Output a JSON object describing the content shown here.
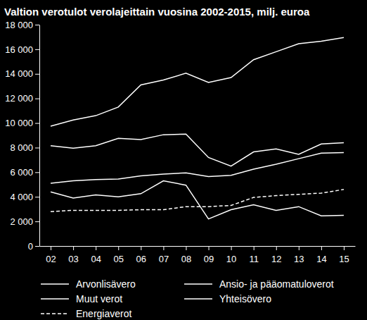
{
  "chart_data": {
    "type": "line",
    "title": "Valtion verotulot verolajeittain vuosina 2002-2015, milj. euroa",
    "categories": [
      "02",
      "03",
      "04",
      "05",
      "06",
      "07",
      "08",
      "09",
      "10",
      "11",
      "12",
      "13",
      "14",
      "15"
    ],
    "series": [
      {
        "name": "Arvonlisävero",
        "color": "#ffffff",
        "line_style": "solid",
        "values": [
          9750,
          10250,
          10600,
          11300,
          13100,
          13500,
          14050,
          13300,
          13700,
          15150,
          15800,
          16450,
          16650,
          16950
        ]
      },
      {
        "name": "Ansio- ja pääomatuloverot",
        "color": "#ffffff",
        "line_style": "solid",
        "values": [
          8150,
          7950,
          8150,
          8750,
          8650,
          9050,
          9100,
          7200,
          6500,
          7650,
          7900,
          7450,
          8300,
          8400
        ]
      },
      {
        "name": "Muut verot",
        "color": "#ffffff",
        "line_style": "solid",
        "values": [
          5100,
          5300,
          5400,
          5450,
          5700,
          5850,
          5950,
          5650,
          5750,
          6250,
          6650,
          7100,
          7550,
          7600
        ]
      },
      {
        "name": "Yhteisövero",
        "color": "#ffffff",
        "line_style": "solid",
        "values": [
          4400,
          3900,
          4150,
          4000,
          4250,
          5300,
          4950,
          2200,
          2950,
          3350,
          2900,
          3200,
          2450,
          2500
        ]
      },
      {
        "name": "Energiaverot",
        "color": "#ffffff",
        "line_style": "dashed",
        "values": [
          2800,
          2900,
          2900,
          2900,
          2950,
          2950,
          3200,
          3200,
          3300,
          3950,
          4100,
          4200,
          4300,
          4600
        ]
      }
    ],
    "ylim": [
      0,
      18000
    ],
    "yticks": [
      0,
      {
        "value": 2000,
        "label": "2 000"
      },
      {
        "value": 4000,
        "label": "4 000"
      },
      {
        "value": 6000,
        "label": "6 000"
      },
      {
        "value": 8000,
        "label": "8 000"
      },
      {
        "value": 10000,
        "label": "10 000"
      },
      {
        "value": 12000,
        "label": "12 000"
      },
      {
        "value": 14000,
        "label": "14 000"
      },
      {
        "value": 16000,
        "label": "16 000"
      },
      {
        "value": 18000,
        "label": "18 000"
      }
    ],
    "grid": false,
    "legend": "bottom"
  }
}
